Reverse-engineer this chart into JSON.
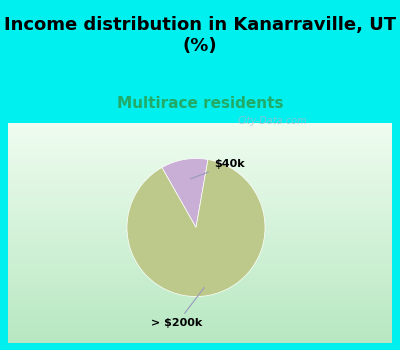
{
  "title": "Income distribution in Kanarraville, UT\n(%)",
  "subtitle": "Multirace residents",
  "slices": [
    {
      "label": "$40k",
      "value": 11,
      "color": "#c9aed6"
    },
    {
      "label": "> $200k",
      "value": 89,
      "color": "#bdc98a"
    }
  ],
  "title_fontsize": 13,
  "subtitle_fontsize": 11,
  "subtitle_color": "#22aa66",
  "watermark": "City-Data.com",
  "cyan_bg": "#00f0f0",
  "chart_bg_top": "#f0faf0",
  "chart_bg_bottom": "#b8e8c0",
  "startangle": 80,
  "pie_pct_small": 11
}
